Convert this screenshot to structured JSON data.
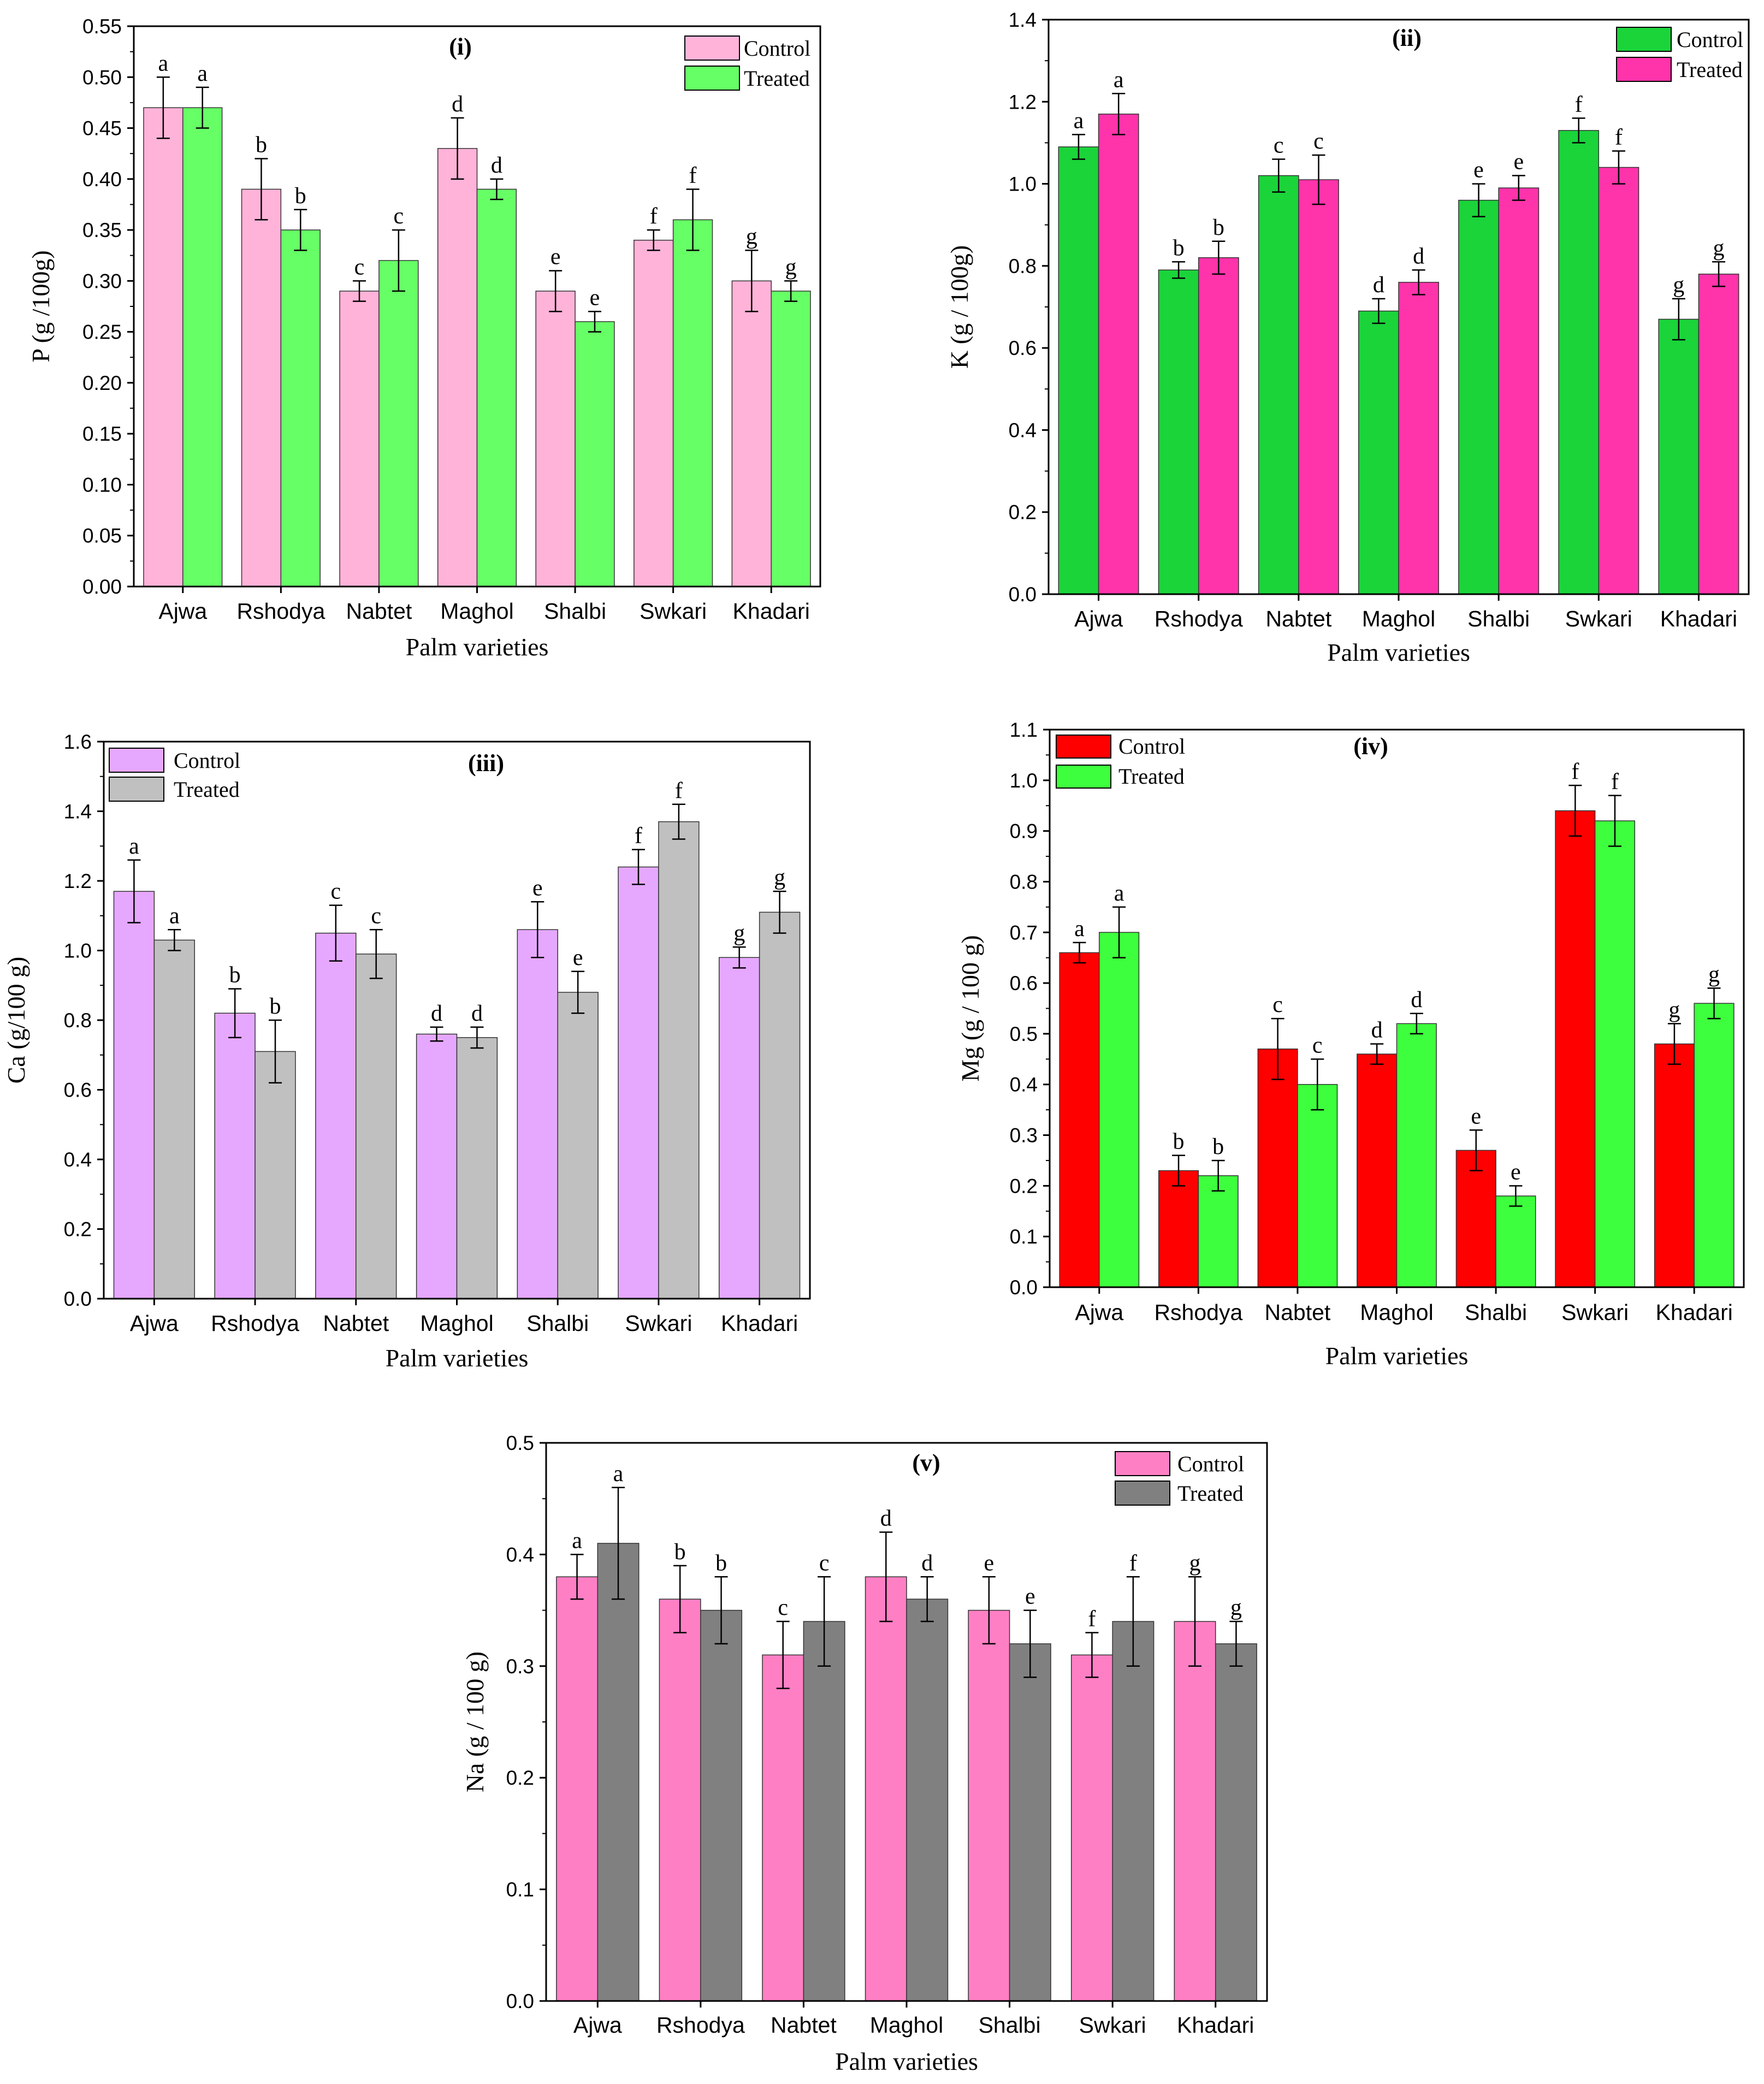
{
  "chart_data": [
    {
      "id": "i",
      "type": "bar",
      "title": "(i)",
      "xlabel": "Palm varieties",
      "ylabel": "P (g /100g)",
      "ylim": [
        0,
        0.55
      ],
      "yticks": [
        "0.00",
        "0.05",
        "0.10",
        "0.15",
        "0.20",
        "0.25",
        "0.30",
        "0.35",
        "0.40",
        "0.45",
        "0.50",
        "0.55"
      ],
      "categories": [
        "Ajwa",
        "Rshodya",
        "Nabtet",
        "Maghol",
        "Shalbi",
        "Swkari",
        "Khadari"
      ],
      "legend_position": "top-right",
      "series": [
        {
          "name": "Control",
          "color": "#ffb3d9",
          "values": [
            0.47,
            0.39,
            0.29,
            0.43,
            0.29,
            0.34,
            0.3
          ],
          "errors": [
            0.03,
            0.03,
            0.01,
            0.03,
            0.02,
            0.01,
            0.03
          ],
          "letters": [
            "a",
            "b",
            "c",
            "d",
            "e",
            "f",
            "g"
          ]
        },
        {
          "name": "Treated",
          "color": "#66ff66",
          "values": [
            0.47,
            0.35,
            0.32,
            0.39,
            0.26,
            0.36,
            0.29
          ],
          "errors": [
            0.02,
            0.02,
            0.03,
            0.01,
            0.01,
            0.03,
            0.01
          ],
          "letters": [
            "a",
            "b",
            "c",
            "d",
            "e",
            "f",
            "g"
          ]
        }
      ]
    },
    {
      "id": "ii",
      "type": "bar",
      "title": "(ii)",
      "xlabel": "Palm varieties",
      "ylabel": "K (g / 100g)",
      "ylim": [
        0,
        1.4
      ],
      "yticks": [
        "0.0",
        "0.2",
        "0.4",
        "0.6",
        "0.8",
        "1.0",
        "1.2",
        "1.4"
      ],
      "categories": [
        "Ajwa",
        "Rshodya",
        "Nabtet",
        "Maghol",
        "Shalbi",
        "Swkari",
        "Khadari"
      ],
      "legend_position": "top-right",
      "series": [
        {
          "name": "Control",
          "color": "#1ad43a",
          "values": [
            1.09,
            0.79,
            1.02,
            0.69,
            0.96,
            1.13,
            0.67
          ],
          "errors": [
            0.03,
            0.02,
            0.04,
            0.03,
            0.04,
            0.03,
            0.05
          ],
          "letters": [
            "a",
            "b",
            "c",
            "d",
            "e",
            "f",
            "g"
          ]
        },
        {
          "name": "Treated",
          "color": "#ff33aa",
          "values": [
            1.17,
            0.82,
            1.01,
            0.76,
            0.99,
            1.04,
            0.78
          ],
          "errors": [
            0.05,
            0.04,
            0.06,
            0.03,
            0.03,
            0.04,
            0.03
          ],
          "letters": [
            "a",
            "b",
            "c",
            "d",
            "e",
            "f",
            "g"
          ]
        }
      ]
    },
    {
      "id": "iii",
      "type": "bar",
      "title": "(iii)",
      "xlabel": "Palm varieties",
      "ylabel": "Ca (g/100 g)",
      "ylim": [
        0,
        1.6
      ],
      "yticks": [
        "0.0",
        "0.2",
        "0.4",
        "0.6",
        "0.8",
        "1.0",
        "1.2",
        "1.4",
        "1.6"
      ],
      "categories": [
        "Ajwa",
        "Rshodya",
        "Nabtet",
        "Maghol",
        "Shalbi",
        "Swkari",
        "Khadari"
      ],
      "legend_position": "top-left",
      "series": [
        {
          "name": "Control",
          "color": "#e6a8ff",
          "values": [
            1.17,
            0.82,
            1.05,
            0.76,
            1.06,
            1.24,
            0.98
          ],
          "errors": [
            0.09,
            0.07,
            0.08,
            0.02,
            0.08,
            0.05,
            0.03
          ],
          "letters": [
            "a",
            "b",
            "c",
            "d",
            "e",
            "f",
            "g"
          ]
        },
        {
          "name": "Treated",
          "color": "#c0c0c0",
          "values": [
            1.03,
            0.71,
            0.99,
            0.75,
            0.88,
            1.37,
            1.11
          ],
          "errors": [
            0.03,
            0.09,
            0.07,
            0.03,
            0.06,
            0.05,
            0.06
          ],
          "letters": [
            "a",
            "b",
            "c",
            "d",
            "e",
            "f",
            "g"
          ]
        }
      ]
    },
    {
      "id": "iv",
      "type": "bar",
      "title": "(iv)",
      "xlabel": "Palm varieties",
      "ylabel": "Mg (g / 100 g)",
      "ylim": [
        0,
        1.1
      ],
      "yticks": [
        "0.0",
        "0.1",
        "0.2",
        "0.3",
        "0.4",
        "0.5",
        "0.6",
        "0.7",
        "0.8",
        "0.9",
        "1.0",
        "1.1"
      ],
      "categories": [
        "Ajwa",
        "Rshodya",
        "Nabtet",
        "Maghol",
        "Shalbi",
        "Swkari",
        "Khadari"
      ],
      "legend_position": "top-left",
      "series": [
        {
          "name": "Control",
          "color": "#ff0000",
          "values": [
            0.66,
            0.23,
            0.47,
            0.46,
            0.27,
            0.94,
            0.48
          ],
          "errors": [
            0.02,
            0.03,
            0.06,
            0.02,
            0.04,
            0.05,
            0.04
          ],
          "letters": [
            "a",
            "b",
            "c",
            "d",
            "e",
            "f",
            "g"
          ]
        },
        {
          "name": "Treated",
          "color": "#3dff3d",
          "values": [
            0.7,
            0.22,
            0.4,
            0.52,
            0.18,
            0.92,
            0.56
          ],
          "errors": [
            0.05,
            0.03,
            0.05,
            0.02,
            0.02,
            0.05,
            0.03
          ],
          "letters": [
            "a",
            "b",
            "c",
            "d",
            "e",
            "f",
            "g"
          ]
        }
      ]
    },
    {
      "id": "v",
      "type": "bar",
      "title": "(v)",
      "xlabel": "Palm varieties",
      "ylabel": "Na (g / 100 g)",
      "ylim": [
        0,
        0.5
      ],
      "yticks": [
        "0.0",
        "0.1",
        "0.2",
        "0.3",
        "0.4",
        "0.5"
      ],
      "categories": [
        "Ajwa",
        "Rshodya",
        "Nabtet",
        "Maghol",
        "Shalbi",
        "Swkari",
        "Khadari"
      ],
      "legend_position": "top-right",
      "series": [
        {
          "name": "Control",
          "color": "#ff7fc4",
          "values": [
            0.38,
            0.36,
            0.31,
            0.38,
            0.35,
            0.31,
            0.34
          ],
          "errors": [
            0.02,
            0.03,
            0.03,
            0.04,
            0.03,
            0.02,
            0.04
          ],
          "letters": [
            "a",
            "b",
            "c",
            "d",
            "e",
            "f",
            "g"
          ]
        },
        {
          "name": "Treated",
          "color": "#808080",
          "values": [
            0.41,
            0.35,
            0.34,
            0.36,
            0.32,
            0.34,
            0.32
          ],
          "errors": [
            0.05,
            0.03,
            0.04,
            0.02,
            0.03,
            0.04,
            0.02
          ],
          "letters": [
            "a",
            "b",
            "c",
            "d",
            "e",
            "f",
            "g"
          ]
        }
      ]
    }
  ]
}
